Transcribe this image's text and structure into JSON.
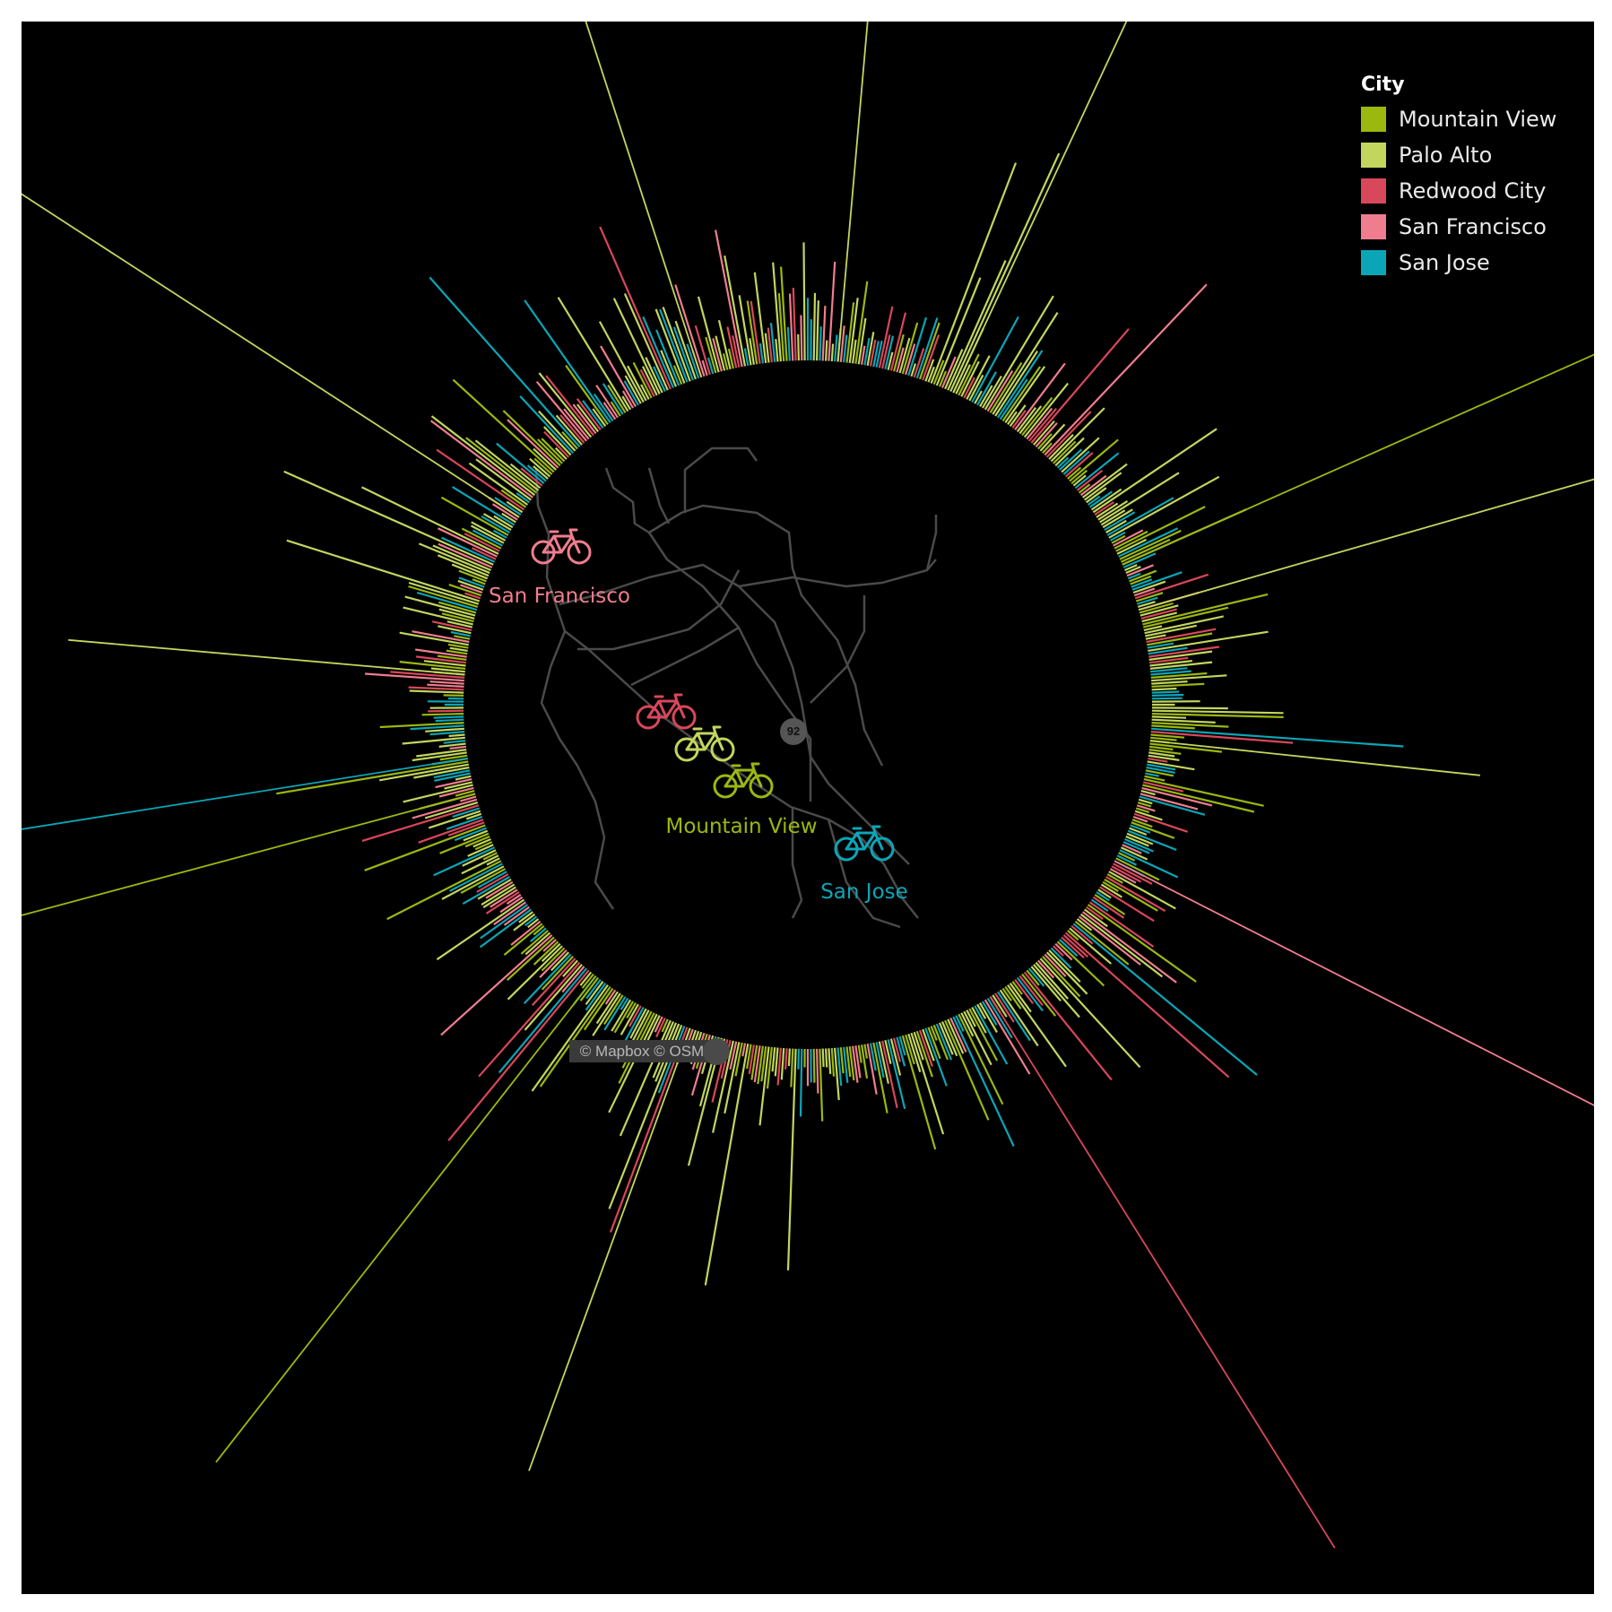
{
  "colors": {
    "background": "#000000",
    "Mountain View": "#9bb80f",
    "Palo Alto": "#c2d65e",
    "Redwood City": "#d9475a",
    "San Francisco": "#f07d8e",
    "San Jose": "#0aa6b8",
    "road": "#4a4a4a"
  },
  "legend": {
    "title": "City",
    "items": [
      "Mountain View",
      "Palo Alto",
      "Redwood City",
      "San Francisco",
      "San Jose"
    ]
  },
  "map": {
    "attribution": "© Mapbox © OSM",
    "highway_shield": "92",
    "cities": [
      {
        "name": "San Francisco",
        "label": "San Francisco",
        "icon": "bicycle-icon"
      },
      {
        "name": "Redwood City",
        "label": "",
        "icon": "bicycle-icon"
      },
      {
        "name": "Palo Alto",
        "label": "",
        "icon": "bicycle-icon"
      },
      {
        "name": "Mountain View",
        "label": "Mountain View",
        "icon": "bicycle-icon"
      },
      {
        "name": "San Jose",
        "label": "San Jose",
        "icon": "bicycle-icon"
      }
    ]
  },
  "chart_data": {
    "type": "radial-bar",
    "title": "",
    "series_field": "City",
    "series": [
      {
        "name": "Mountain View",
        "color": "#9bb80f"
      },
      {
        "name": "Palo Alto",
        "color": "#c2d65e"
      },
      {
        "name": "Redwood City",
        "color": "#d9475a"
      },
      {
        "name": "San Francisco",
        "color": "#f07d8e"
      },
      {
        "name": "San Jose",
        "color": "#0aa6b8"
      }
    ],
    "bar_count_estimate": 720,
    "value_scale": "relative (0-1), no axis printed",
    "notable_spikes": [
      {
        "angle_deg": 5,
        "city": "Palo Alto",
        "value": 1.0
      },
      {
        "angle_deg": 25,
        "city": "Palo Alto",
        "value": 0.92
      },
      {
        "angle_deg": 66,
        "city": "Mountain View",
        "value": 0.96
      },
      {
        "angle_deg": 74,
        "city": "Palo Alto",
        "value": 0.77
      },
      {
        "angle_deg": 96,
        "city": "Palo Alto",
        "value": 0.5
      },
      {
        "angle_deg": 117,
        "city": "San Francisco",
        "value": 0.86
      },
      {
        "angle_deg": 148,
        "city": "Redwood City",
        "value": 0.98
      },
      {
        "angle_deg": 200,
        "city": "Palo Alto",
        "value": 0.71
      },
      {
        "angle_deg": 218,
        "city": "Mountain View",
        "value": 0.93
      },
      {
        "angle_deg": 255,
        "city": "Mountain View",
        "value": 0.89
      },
      {
        "angle_deg": 261,
        "city": "San Jose",
        "value": 0.97
      },
      {
        "angle_deg": 275,
        "city": "Palo Alto",
        "value": 0.6
      },
      {
        "angle_deg": 303,
        "city": "Palo Alto",
        "value": 0.95
      },
      {
        "angle_deg": 342,
        "city": "Palo Alto",
        "value": 0.86
      }
    ]
  }
}
